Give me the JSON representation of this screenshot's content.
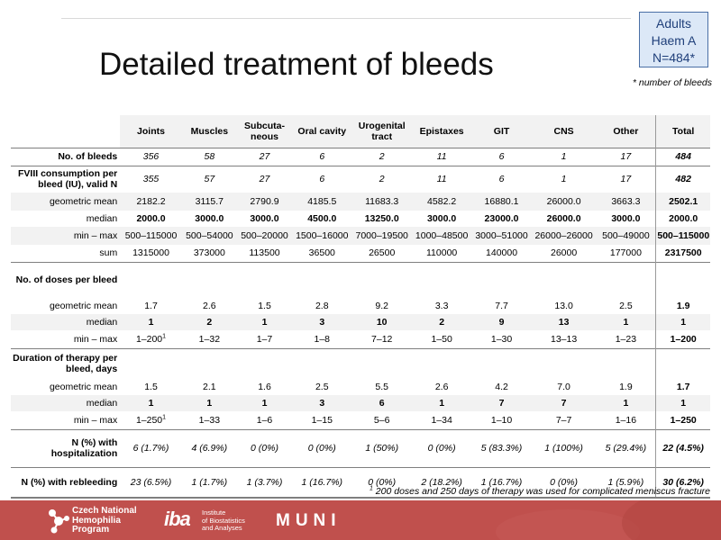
{
  "slide": {
    "title": "Detailed treatment of bleeds",
    "info_box": {
      "line1": "Adults",
      "line2": "Haem A",
      "line3": "N=484*"
    },
    "note": "* number of bleeds",
    "footnote_sup": "1",
    "footnote": " 200 doses and 250 days of therapy was used for complicated meniscus fracture"
  },
  "table": {
    "columns": [
      "Joints",
      "Muscles",
      "Subcuta-\nneous",
      "Oral cavity",
      "Urogenital tract",
      "Epistaxes",
      "GIT",
      "CNS",
      "Other",
      "Total"
    ],
    "no_bleeds": {
      "label": "No. of bleeds",
      "values": [
        "356",
        "58",
        "27",
        "6",
        "2",
        "11",
        "6",
        "1",
        "17",
        "484"
      ]
    },
    "fviii": {
      "label": "FVIII consumption per bleed (IU), valid N",
      "valid_n": [
        "355",
        "57",
        "27",
        "6",
        "2",
        "11",
        "6",
        "1",
        "17",
        "482"
      ],
      "geo_label": "geometric mean",
      "geo": [
        "2182.2",
        "3115.7",
        "2790.9",
        "4185.5",
        "11683.3",
        "4582.2",
        "16880.1",
        "26000.0",
        "3663.3",
        "2502.1"
      ],
      "median_label": "median",
      "median": [
        "2000.0",
        "3000.0",
        "3000.0",
        "4500.0",
        "13250.0",
        "3000.0",
        "23000.0",
        "26000.0",
        "3000.0",
        "2000.0"
      ],
      "minmax_label": "min – max",
      "minmax": [
        "500–115000",
        "500–54000",
        "500–20000",
        "1500–16000",
        "7000–19500",
        "1000–48500",
        "3000–51000",
        "26000–26000",
        "500–49000",
        "500–115000"
      ],
      "sum_label": "sum",
      "sum": [
        "1315000",
        "373000",
        "113500",
        "36500",
        "26500",
        "110000",
        "140000",
        "26000",
        "177000",
        "2317500"
      ]
    },
    "doses": {
      "label": "No. of doses per bleed",
      "geo_label": "geometric mean",
      "geo": [
        "1.7",
        "2.6",
        "1.5",
        "2.8",
        "9.2",
        "3.3",
        "7.7",
        "13.0",
        "2.5",
        "1.9"
      ],
      "median_label": "median",
      "median": [
        "1",
        "2",
        "1",
        "3",
        "10",
        "2",
        "9",
        "13",
        "1",
        "1"
      ],
      "minmax_label": "min – max",
      "minmax_first": "1–200",
      "minmax_sup": "1",
      "minmax": [
        "1–32",
        "1–7",
        "1–8",
        "7–12",
        "1–50",
        "1–30",
        "13–13",
        "1–23",
        "1–200"
      ]
    },
    "duration": {
      "label": "Duration of therapy per bleed, days",
      "geo_label": "geometric mean",
      "geo": [
        "1.5",
        "2.1",
        "1.6",
        "2.5",
        "5.5",
        "2.6",
        "4.2",
        "7.0",
        "1.9",
        "1.7"
      ],
      "median_label": "median",
      "median": [
        "1",
        "1",
        "1",
        "3",
        "6",
        "1",
        "7",
        "7",
        "1",
        "1"
      ],
      "minmax_label": "min – max",
      "minmax_first": "1–250",
      "minmax_sup": "1",
      "minmax": [
        "1–33",
        "1–6",
        "1–15",
        "5–6",
        "1–34",
        "1–10",
        "7–7",
        "1–16",
        "1–250"
      ]
    },
    "hosp": {
      "label": "N (%) with hospitalization",
      "values": [
        "6 (1.7%)",
        "4 (6.9%)",
        "0 (0%)",
        "0 (0%)",
        "1 (50%)",
        "0 (0%)",
        "5 (83.3%)",
        "1 (100%)",
        "5 (29.4%)",
        "22 (4.5%)"
      ]
    },
    "rebleed": {
      "label": "N (%) with rebleeding",
      "values": [
        "23 (6.5%)",
        "1 (1.7%)",
        "1 (3.7%)",
        "1 (16.7%)",
        "0 (0%)",
        "2 (18.2%)",
        "1 (16.7%)",
        "0 (0%)",
        "1 (5.9%)",
        "30 (6.2%)"
      ]
    }
  },
  "footer": {
    "cnhp_line1": "Czech National",
    "cnhp_line2": "Hemophilia",
    "cnhp_line3": "Program",
    "iba_mark": "iba",
    "iba_line1": "Institute",
    "iba_line2": "of Biostatistics",
    "iba_line3": "and Analyses",
    "muni": "MUNI",
    "colors": {
      "footer_bg": "#c0504d",
      "info_box_bg": "#dce8f7",
      "info_box_text": "#1f3f7a"
    }
  }
}
